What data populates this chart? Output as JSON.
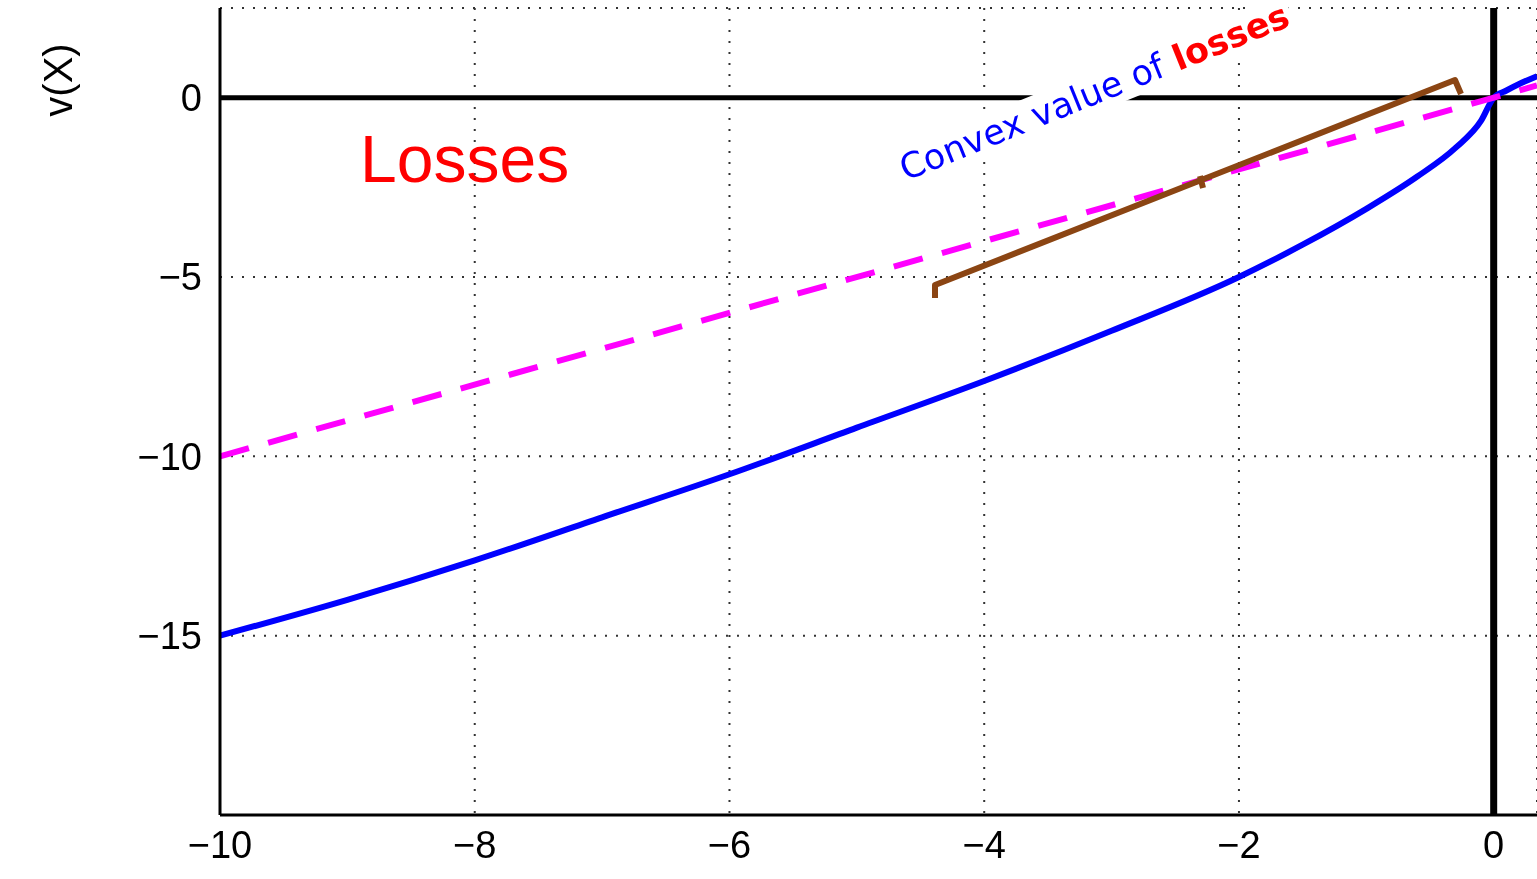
{
  "chart_data": {
    "type": "line",
    "ylabel": "v(X)",
    "xlim": [
      -10,
      0.34
    ],
    "ylim": [
      -20,
      2.5
    ],
    "xticks": [
      -10,
      -8,
      -6,
      -4,
      -2,
      0
    ],
    "yticks": [
      -15,
      -10,
      -5,
      0
    ],
    "grid": true,
    "marker": "none",
    "series": [
      {
        "color": "#0000ff",
        "line_style": "solid",
        "x": [
          -10,
          -9,
          -8,
          -7,
          -6,
          -5,
          -4,
          -3,
          -2,
          -1.5,
          -1,
          -0.6,
          -0.3,
          -0.1,
          0,
          0.1,
          0.2,
          0.34
        ],
        "values": [
          -15,
          -14,
          -12.9,
          -11.7,
          -10.5,
          -9.2,
          -7.9,
          -6.5,
          -5,
          -4.1,
          -3.1,
          -2.2,
          -1.4,
          -0.65,
          0,
          0.2,
          0.38,
          0.6
        ]
      },
      {
        "color": "#ff00ff",
        "line_style": "dashed",
        "x": [
          -10,
          0.34
        ],
        "values": [
          -10,
          0.34
        ]
      }
    ],
    "ref_lines": [
      {
        "axis": "x",
        "value": 0,
        "color": "#000000"
      },
      {
        "axis": "y",
        "value": 0,
        "color": "#000000"
      }
    ],
    "annotations": [
      "Losses",
      "Convex value of losses"
    ]
  }
}
